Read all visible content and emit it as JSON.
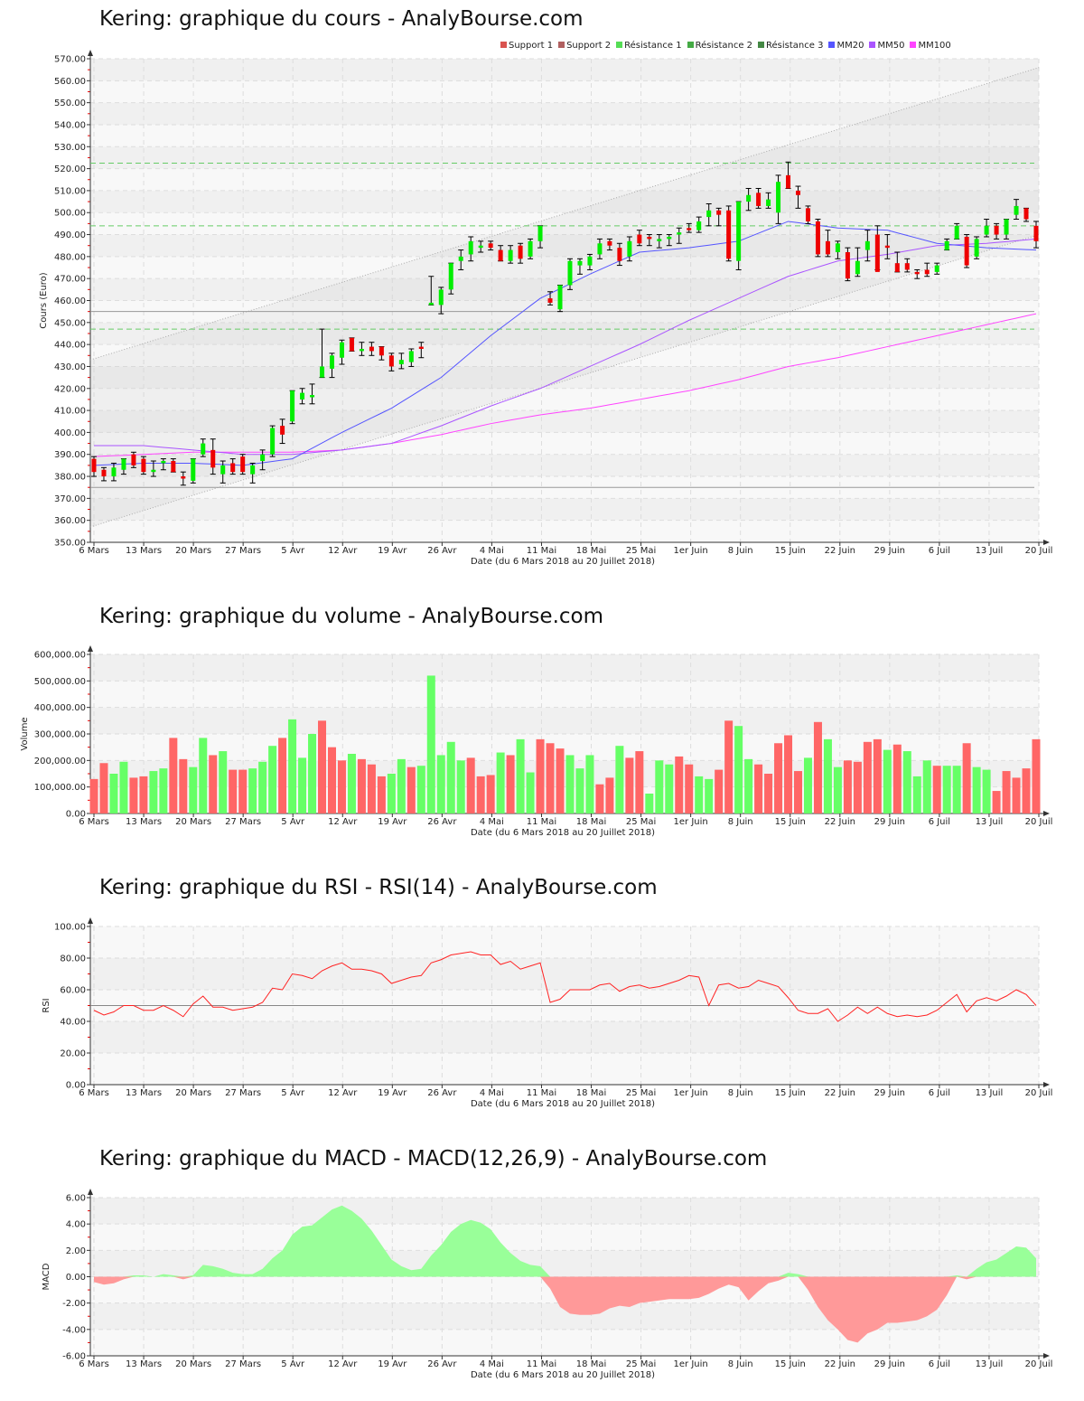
{
  "titles": {
    "price": "Kering: graphique du cours - AnalyBourse.com",
    "volume": "Kering: graphique du volume - AnalyBourse.com",
    "rsi": "Kering: graphique du RSI - RSI(14) - AnalyBourse.com",
    "macd": "Kering: graphique du MACD - MACD(12,26,9) - AnalyBourse.com"
  },
  "legend": [
    {
      "label": "Support 1",
      "color": "#d9534f"
    },
    {
      "label": "Support 2",
      "color": "#b06060"
    },
    {
      "label": "Résistance 1",
      "color": "#55dd55"
    },
    {
      "label": "Résistance 2",
      "color": "#44aa44"
    },
    {
      "label": "Résistance 3",
      "color": "#448844"
    },
    {
      "label": "MM20",
      "color": "#5555ff"
    },
    {
      "label": "MM50",
      "color": "#aa55ff"
    },
    {
      "label": "MM100",
      "color": "#ff44ff"
    }
  ],
  "chart_data": [
    {
      "type": "candlestick",
      "name": "price",
      "ylabel": "Cours (Euro)",
      "xlabel": "Date (du 6 Mars 2018 au 20 Juillet 2018)",
      "ylim": [
        350,
        570
      ],
      "ystep": 10,
      "xticks": [
        "6 Mars",
        "13 Mars",
        "20 Mars",
        "27 Mars",
        "5 Avr",
        "12 Avr",
        "19 Avr",
        "26 Avr",
        "4 Mai",
        "11 Mai",
        "18 Mai",
        "25 Mai",
        "1er Juin",
        "8 Juin",
        "15 Juin",
        "22 Juin",
        "29 Juin",
        "6 Juil",
        "13 Juil",
        "20 Juil"
      ],
      "ohlc": [
        [
          388,
          382,
          389,
          380
        ],
        [
          383,
          380,
          384,
          378
        ],
        [
          380,
          384,
          386,
          378
        ],
        [
          383,
          388,
          388,
          381
        ],
        [
          390,
          385,
          391,
          384
        ],
        [
          388,
          382,
          389,
          381
        ],
        [
          382,
          383,
          387,
          380
        ],
        [
          386,
          387,
          388,
          383
        ],
        [
          387,
          382,
          388,
          382
        ],
        [
          380,
          379,
          382,
          376
        ],
        [
          378,
          388,
          388,
          377
        ],
        [
          390,
          395,
          397,
          389
        ],
        [
          392,
          384,
          397,
          381
        ],
        [
          381,
          385,
          387,
          377
        ],
        [
          386,
          382,
          388,
          381
        ],
        [
          389,
          382,
          390,
          381
        ],
        [
          381,
          385,
          386,
          377
        ],
        [
          387,
          390,
          392,
          383
        ],
        [
          390,
          402,
          403,
          389
        ],
        [
          403,
          399,
          406,
          395
        ],
        [
          405,
          419,
          419,
          404
        ],
        [
          415,
          418,
          420,
          413
        ],
        [
          416,
          417,
          422,
          413
        ],
        [
          425,
          430,
          447,
          425
        ],
        [
          429,
          435,
          436,
          425
        ],
        [
          434,
          441,
          442,
          431
        ],
        [
          443,
          437,
          443,
          437
        ],
        [
          437,
          438,
          441,
          435
        ],
        [
          439,
          437,
          441,
          435
        ],
        [
          439,
          435,
          439,
          433
        ],
        [
          435,
          430,
          436,
          428
        ],
        [
          431,
          433,
          436,
          429
        ],
        [
          432,
          437,
          438,
          430
        ],
        [
          439,
          438,
          441,
          434
        ],
        [
          458,
          459,
          471,
          458
        ],
        [
          458,
          465,
          466,
          454
        ],
        [
          465,
          477,
          477,
          463
        ],
        [
          478,
          480,
          483,
          474
        ],
        [
          481,
          487,
          489,
          478
        ],
        [
          484,
          485,
          487,
          482
        ],
        [
          486,
          484,
          487,
          483
        ],
        [
          483,
          478,
          485,
          478
        ],
        [
          478,
          483,
          485,
          477
        ],
        [
          485,
          479,
          486,
          477
        ],
        [
          480,
          487,
          488,
          479
        ],
        [
          487,
          494,
          494,
          484
        ],
        [
          461,
          459,
          464,
          458
        ],
        [
          456,
          467,
          467,
          455
        ],
        [
          467,
          478,
          479,
          465
        ],
        [
          476,
          478,
          479,
          472
        ],
        [
          476,
          480,
          481,
          474
        ],
        [
          481,
          486,
          488,
          479
        ],
        [
          487,
          485,
          488,
          483
        ],
        [
          484,
          478,
          486,
          476
        ],
        [
          480,
          487,
          489,
          478
        ],
        [
          490,
          486,
          492,
          485
        ],
        [
          489,
          488,
          490,
          485
        ],
        [
          487,
          488,
          490,
          484
        ],
        [
          488,
          489,
          490,
          485
        ],
        [
          490,
          491,
          493,
          486
        ],
        [
          493,
          492,
          495,
          491
        ],
        [
          492,
          496,
          498,
          491
        ],
        [
          498,
          501,
          504,
          494
        ],
        [
          501,
          499,
          502,
          494
        ],
        [
          501,
          479,
          503,
          478
        ],
        [
          478,
          505,
          505,
          474
        ],
        [
          505,
          508,
          511,
          501
        ],
        [
          509,
          503,
          511,
          502
        ],
        [
          503,
          506,
          509,
          502
        ],
        [
          500,
          514,
          517,
          495
        ],
        [
          517,
          511,
          523,
          511
        ],
        [
          510,
          508,
          512,
          502
        ],
        [
          502,
          496,
          503,
          495
        ],
        [
          496,
          481,
          497,
          480
        ],
        [
          487,
          481,
          492,
          480
        ],
        [
          482,
          486,
          487,
          479
        ],
        [
          482,
          470,
          484,
          469
        ],
        [
          472,
          478,
          484,
          471
        ],
        [
          483,
          487,
          492,
          478
        ],
        [
          490,
          473,
          494,
          474
        ],
        [
          485,
          484,
          490,
          479
        ],
        [
          477,
          473,
          482,
          473
        ],
        [
          477,
          474,
          479,
          473
        ],
        [
          473,
          472,
          474,
          470
        ],
        [
          474,
          472,
          477,
          471
        ],
        [
          473,
          476,
          477,
          472
        ],
        [
          483,
          487,
          488,
          483
        ],
        [
          488,
          494,
          495,
          488
        ],
        [
          489,
          476,
          490,
          475
        ],
        [
          480,
          488,
          489,
          479
        ],
        [
          490,
          494,
          497,
          489
        ],
        [
          494,
          490,
          495,
          488
        ],
        [
          490,
          497,
          497,
          488
        ],
        [
          499,
          503,
          506,
          497
        ],
        [
          502,
          497,
          502,
          496
        ],
        [
          494,
          487,
          496,
          484
        ]
      ],
      "mm20": [
        385,
        386,
        386,
        385,
        388,
        400,
        411,
        425,
        444,
        461,
        472,
        482,
        484,
        487,
        496,
        493,
        492,
        486,
        484,
        483
      ],
      "mm50": [
        394,
        394,
        392,
        390,
        390,
        392,
        395,
        403,
        412,
        420,
        430,
        440,
        451,
        461,
        471,
        478,
        481,
        485,
        486,
        488
      ],
      "mm100": [
        389,
        390,
        391,
        391,
        391,
        392,
        395,
        399,
        404,
        408,
        411,
        415,
        419,
        424,
        430,
        434,
        439,
        444,
        449,
        454
      ],
      "supports": [
        455,
        375
      ],
      "resistances": [
        522.5,
        494,
        447
      ],
      "channel": {
        "upper": [
          433,
          566
        ],
        "lower": [
          357,
          490
        ]
      }
    },
    {
      "type": "bar",
      "name": "volume",
      "ylabel": "Volume",
      "xlabel": "Date (du 6 Mars 2018 au 20 Juillet 2018)",
      "ylim": [
        0,
        600000
      ],
      "ystep": 100000,
      "values_thousands": [
        130,
        190,
        150,
        195,
        135,
        140,
        160,
        170,
        285,
        205,
        175,
        285,
        220,
        235,
        165,
        165,
        170,
        195,
        255,
        285,
        355,
        210,
        300,
        350,
        250,
        200,
        225,
        205,
        185,
        140,
        150,
        205,
        175,
        180,
        520,
        220,
        270,
        200,
        210,
        140,
        145,
        230,
        220,
        280,
        155,
        280,
        265,
        245,
        220,
        170,
        220,
        110,
        135,
        255,
        210,
        235,
        75,
        200,
        185,
        215,
        185,
        140,
        130,
        165,
        350,
        330,
        205,
        185,
        150,
        265,
        295,
        160,
        210,
        345,
        280,
        175,
        200,
        195,
        270,
        280,
        240,
        260,
        235,
        140,
        200,
        180,
        180,
        180,
        265,
        175,
        165,
        85,
        160,
        135,
        170,
        280
      ],
      "direction": "rrggrrggrrggrgrrggg r g g g r r r g r r r g g r g g g g g r r r g r g g r r r g g g r r g r r g g g r r g g r r g g r r r r r g r g g r r r r g r g g g r g g r g g r r"
    },
    {
      "type": "line",
      "name": "rsi",
      "ylabel": "RSI",
      "xlabel": "Date (du 6 Mars 2018 au 20 Juillet 2018)",
      "ylim": [
        0,
        100
      ],
      "ystep": 20,
      "reference": 50,
      "values": [
        47,
        44,
        46,
        50,
        50,
        47,
        47,
        50,
        47,
        43,
        51,
        56,
        49,
        49,
        47,
        48,
        49,
        52,
        61,
        60,
        70,
        69,
        67,
        72,
        75,
        77,
        73,
        73,
        72,
        70,
        64,
        66,
        68,
        69,
        77,
        79,
        82,
        83,
        84,
        82,
        82,
        76,
        78,
        73,
        75,
        77,
        52,
        54,
        60,
        60,
        60,
        63,
        64,
        59,
        62,
        63,
        61,
        62,
        64,
        66,
        69,
        68,
        50,
        63,
        64,
        61,
        62,
        66,
        64,
        62,
        55,
        47,
        45,
        45,
        48,
        40,
        44,
        49,
        45,
        49,
        45,
        43,
        44,
        43,
        44,
        47,
        52,
        57,
        46,
        53,
        55,
        53,
        56,
        60,
        57,
        50
      ]
    },
    {
      "type": "area",
      "name": "macd",
      "ylabel": "MACD",
      "xlabel": "Date (du 6 Mars 2018 au 20 Juillet 2018)",
      "ylim": [
        -6,
        6
      ],
      "ystep": 2,
      "values": [
        -0.4,
        -0.6,
        -0.5,
        -0.2,
        0.1,
        0.1,
        0.0,
        0.2,
        0.1,
        -0.2,
        0.1,
        0.9,
        0.8,
        0.6,
        0.3,
        0.2,
        0.2,
        0.6,
        1.4,
        2.0,
        3.2,
        3.8,
        3.9,
        4.5,
        5.1,
        5.4,
        5.0,
        4.4,
        3.5,
        2.4,
        1.3,
        0.8,
        0.5,
        0.6,
        1.6,
        2.4,
        3.4,
        4.0,
        4.3,
        4.1,
        3.6,
        2.6,
        1.8,
        1.2,
        0.9,
        0.8,
        -0.9,
        -2.3,
        -2.8,
        -2.9,
        -2.9,
        -2.8,
        -2.4,
        -2.2,
        -2.3,
        -2.0,
        -1.9,
        -1.8,
        -1.7,
        -1.7,
        -1.7,
        -1.6,
        -1.3,
        -0.9,
        -0.6,
        -0.8,
        -1.8,
        -1.1,
        -0.5,
        -0.3,
        0.3,
        0.2,
        -1.0,
        -2.3,
        -3.3,
        -4.0,
        -4.8,
        -5.0,
        -4.3,
        -4.0,
        -3.5,
        -3.5,
        -3.4,
        -3.3,
        -3.0,
        -2.5,
        -1.4,
        0.1,
        -0.2,
        0.6,
        1.1,
        1.3,
        1.8,
        2.3,
        2.2,
        1.4
      ]
    }
  ]
}
